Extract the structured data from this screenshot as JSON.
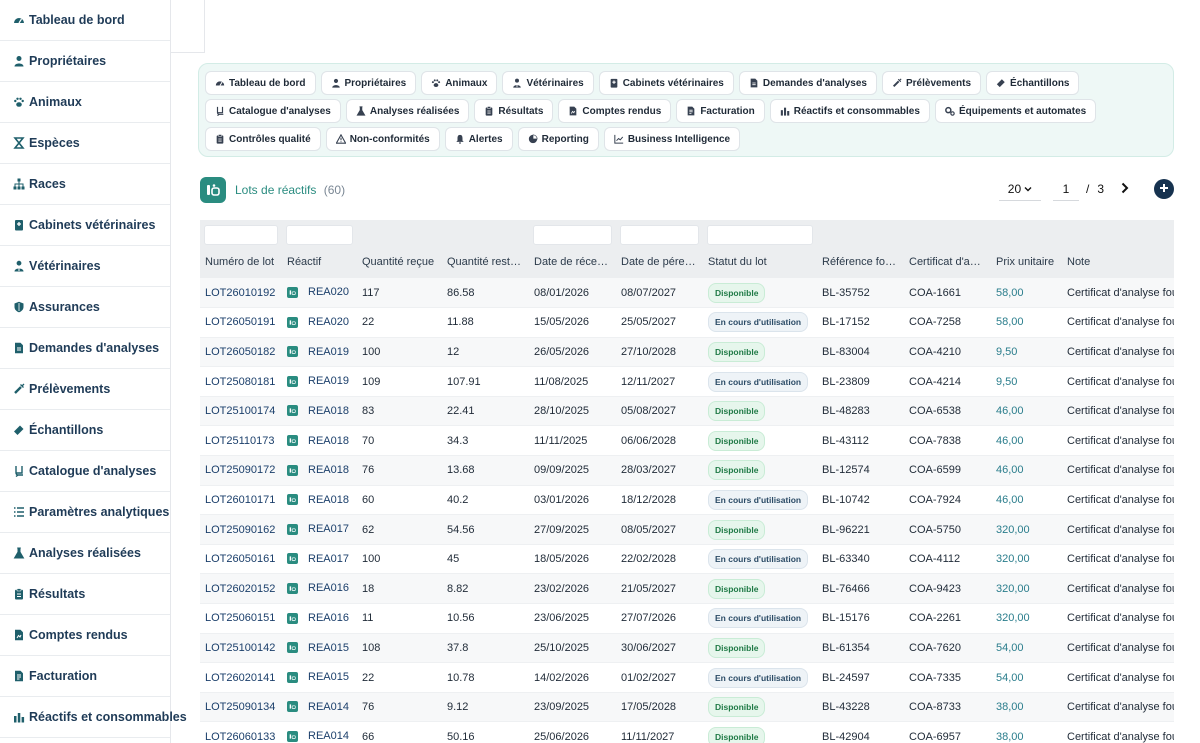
{
  "sidebar": {
    "items": [
      {
        "label": "Tableau de bord",
        "icon": "dashboard-icon"
      },
      {
        "label": "Propriétaires",
        "icon": "person-icon"
      },
      {
        "label": "Animaux",
        "icon": "paw-icon"
      },
      {
        "label": "Espèces",
        "icon": "hourglass-icon"
      },
      {
        "label": "Races",
        "icon": "hierarchy-icon"
      },
      {
        "label": "Cabinets vétérinaires",
        "icon": "clinic-icon"
      },
      {
        "label": "Vétérinaires",
        "icon": "doctor-icon"
      },
      {
        "label": "Assurances",
        "icon": "shield-icon"
      },
      {
        "label": "Demandes d'analyses",
        "icon": "file-icon"
      },
      {
        "label": "Prélèvements",
        "icon": "syringe-icon"
      },
      {
        "label": "Échantillons",
        "icon": "vial-icon"
      },
      {
        "label": "Catalogue d'analyses",
        "icon": "book-icon"
      },
      {
        "label": "Paramètres analytiques",
        "icon": "list-icon"
      },
      {
        "label": "Analyses réalisées",
        "icon": "flask-icon"
      },
      {
        "label": "Résultats",
        "icon": "clipboard-icon"
      },
      {
        "label": "Comptes rendus",
        "icon": "report-icon"
      },
      {
        "label": "Facturation",
        "icon": "invoice-icon"
      },
      {
        "label": "Réactifs et consommables",
        "icon": "reagents-icon"
      }
    ]
  },
  "nav": {
    "buttons": [
      {
        "label": "Tableau de bord",
        "icon": "dashboard-icon"
      },
      {
        "label": "Propriétaires",
        "icon": "person-icon"
      },
      {
        "label": "Animaux",
        "icon": "paw-icon"
      },
      {
        "label": "Vétérinaires",
        "icon": "doctor-icon"
      },
      {
        "label": "Cabinets vétérinaires",
        "icon": "clinic-icon"
      },
      {
        "label": "Demandes d'analyses",
        "icon": "file-icon"
      },
      {
        "label": "Prélèvements",
        "icon": "syringe-icon"
      },
      {
        "label": "Échantillons",
        "icon": "vial-icon"
      },
      {
        "label": "Catalogue d'analyses",
        "icon": "book-icon"
      },
      {
        "label": "Analyses réalisées",
        "icon": "flask-icon"
      },
      {
        "label": "Résultats",
        "icon": "clipboard-icon"
      },
      {
        "label": "Comptes rendus",
        "icon": "report-icon"
      },
      {
        "label": "Facturation",
        "icon": "invoice-icon"
      },
      {
        "label": "Réactifs et consommables",
        "icon": "reagents-icon"
      },
      {
        "label": "Équipements et automates",
        "icon": "gears-icon"
      },
      {
        "label": "Contrôles qualité",
        "icon": "clipboard-icon"
      },
      {
        "label": "Non-conformités",
        "icon": "warning-icon"
      },
      {
        "label": "Alertes",
        "icon": "bell-icon"
      },
      {
        "label": "Reporting",
        "icon": "chart-pie-icon"
      },
      {
        "label": "Business Intelligence",
        "icon": "chart-line-icon"
      }
    ]
  },
  "page": {
    "title": "Lots de réactifs",
    "count": "(60)"
  },
  "pagination": {
    "per_page": "20",
    "current_page": "1",
    "separator": "/",
    "total_pages": "3"
  },
  "table": {
    "columns": [
      "Numéro de lot",
      "Réactif",
      "Quantité reçue",
      "Quantité rest…",
      "Date de réce…",
      "Date de pére…",
      "Statut du lot",
      "Référence fo…",
      "Certificat d'a…",
      "Prix unitaire",
      "Note"
    ],
    "rows": [
      {
        "lot": "LOT26010192",
        "reactif": "REA020",
        "recue": "117",
        "restante": "86.58",
        "reception": "08/01/2026",
        "peremption": "08/07/2027",
        "statut": "Disponible",
        "statut_type": "dispo",
        "ref": "BL-35752",
        "certificat": "COA-1661",
        "prix": "58,00",
        "note": "Certificat d'analyse fourni"
      },
      {
        "lot": "LOT26050191",
        "reactif": "REA020",
        "recue": "22",
        "restante": "11.88",
        "reception": "15/05/2026",
        "peremption": "25/05/2027",
        "statut": "En cours d'utilisation",
        "statut_type": "cours",
        "ref": "BL-17152",
        "certificat": "COA-7258",
        "prix": "58,00",
        "note": "Certificat d'analyse fourni"
      },
      {
        "lot": "LOT26050182",
        "reactif": "REA019",
        "recue": "100",
        "restante": "12",
        "reception": "26/05/2026",
        "peremption": "27/10/2028",
        "statut": "Disponible",
        "statut_type": "dispo",
        "ref": "BL-83004",
        "certificat": "COA-4210",
        "prix": "9,50",
        "note": "Certificat d'analyse fourni"
      },
      {
        "lot": "LOT25080181",
        "reactif": "REA019",
        "recue": "109",
        "restante": "107.91",
        "reception": "11/08/2025",
        "peremption": "12/11/2027",
        "statut": "En cours d'utilisation",
        "statut_type": "cours",
        "ref": "BL-23809",
        "certificat": "COA-4214",
        "prix": "9,50",
        "note": "Certificat d'analyse fourni"
      },
      {
        "lot": "LOT25100174",
        "reactif": "REA018",
        "recue": "83",
        "restante": "22.41",
        "reception": "28/10/2025",
        "peremption": "05/08/2027",
        "statut": "Disponible",
        "statut_type": "dispo",
        "ref": "BL-48283",
        "certificat": "COA-6538",
        "prix": "46,00",
        "note": "Certificat d'analyse fourni"
      },
      {
        "lot": "LOT25110173",
        "reactif": "REA018",
        "recue": "70",
        "restante": "34.3",
        "reception": "11/11/2025",
        "peremption": "06/06/2028",
        "statut": "Disponible",
        "statut_type": "dispo",
        "ref": "BL-43112",
        "certificat": "COA-7838",
        "prix": "46,00",
        "note": "Certificat d'analyse fourni"
      },
      {
        "lot": "LOT25090172",
        "reactif": "REA018",
        "recue": "76",
        "restante": "13.68",
        "reception": "09/09/2025",
        "peremption": "28/03/2027",
        "statut": "Disponible",
        "statut_type": "dispo",
        "ref": "BL-12574",
        "certificat": "COA-6599",
        "prix": "46,00",
        "note": "Certificat d'analyse fourni"
      },
      {
        "lot": "LOT26010171",
        "reactif": "REA018",
        "recue": "60",
        "restante": "40.2",
        "reception": "03/01/2026",
        "peremption": "18/12/2028",
        "statut": "En cours d'utilisation",
        "statut_type": "cours",
        "ref": "BL-10742",
        "certificat": "COA-7924",
        "prix": "46,00",
        "note": "Certificat d'analyse fourni"
      },
      {
        "lot": "LOT25090162",
        "reactif": "REA017",
        "recue": "62",
        "restante": "54.56",
        "reception": "27/09/2025",
        "peremption": "08/05/2027",
        "statut": "Disponible",
        "statut_type": "dispo",
        "ref": "BL-96221",
        "certificat": "COA-5750",
        "prix": "320,00",
        "note": "Certificat d'analyse fourni"
      },
      {
        "lot": "LOT26050161",
        "reactif": "REA017",
        "recue": "100",
        "restante": "45",
        "reception": "18/05/2026",
        "peremption": "22/02/2028",
        "statut": "En cours d'utilisation",
        "statut_type": "cours",
        "ref": "BL-63340",
        "certificat": "COA-4112",
        "prix": "320,00",
        "note": "Certificat d'analyse fourni"
      },
      {
        "lot": "LOT26020152",
        "reactif": "REA016",
        "recue": "18",
        "restante": "8.82",
        "reception": "23/02/2026",
        "peremption": "21/05/2027",
        "statut": "Disponible",
        "statut_type": "dispo",
        "ref": "BL-76466",
        "certificat": "COA-9423",
        "prix": "320,00",
        "note": "Certificat d'analyse fourni"
      },
      {
        "lot": "LOT25060151",
        "reactif": "REA016",
        "recue": "11",
        "restante": "10.56",
        "reception": "23/06/2025",
        "peremption": "27/07/2026",
        "statut": "En cours d'utilisation",
        "statut_type": "cours",
        "ref": "BL-15176",
        "certificat": "COA-2261",
        "prix": "320,00",
        "note": "Certificat d'analyse fourni"
      },
      {
        "lot": "LOT25100142",
        "reactif": "REA015",
        "recue": "108",
        "restante": "37.8",
        "reception": "25/10/2025",
        "peremption": "30/06/2027",
        "statut": "Disponible",
        "statut_type": "dispo",
        "ref": "BL-61354",
        "certificat": "COA-7620",
        "prix": "54,00",
        "note": "Certificat d'analyse fourni"
      },
      {
        "lot": "LOT26020141",
        "reactif": "REA015",
        "recue": "22",
        "restante": "10.78",
        "reception": "14/02/2026",
        "peremption": "01/02/2027",
        "statut": "En cours d'utilisation",
        "statut_type": "cours",
        "ref": "BL-24597",
        "certificat": "COA-7335",
        "prix": "54,00",
        "note": "Certificat d'analyse fourni"
      },
      {
        "lot": "LOT25090134",
        "reactif": "REA014",
        "recue": "76",
        "restante": "9.12",
        "reception": "23/09/2025",
        "peremption": "17/05/2028",
        "statut": "Disponible",
        "statut_type": "dispo",
        "ref": "BL-43228",
        "certificat": "COA-8733",
        "prix": "38,00",
        "note": "Certificat d'analyse fourni"
      },
      {
        "lot": "LOT26060133",
        "reactif": "REA014",
        "recue": "66",
        "restante": "50.16",
        "reception": "25/06/2026",
        "peremption": "11/11/2027",
        "statut": "Disponible",
        "statut_type": "dispo",
        "ref": "BL-42904",
        "certificat": "COA-6957",
        "prix": "38,00",
        "note": "Certificat d'analyse fourni"
      }
    ]
  }
}
